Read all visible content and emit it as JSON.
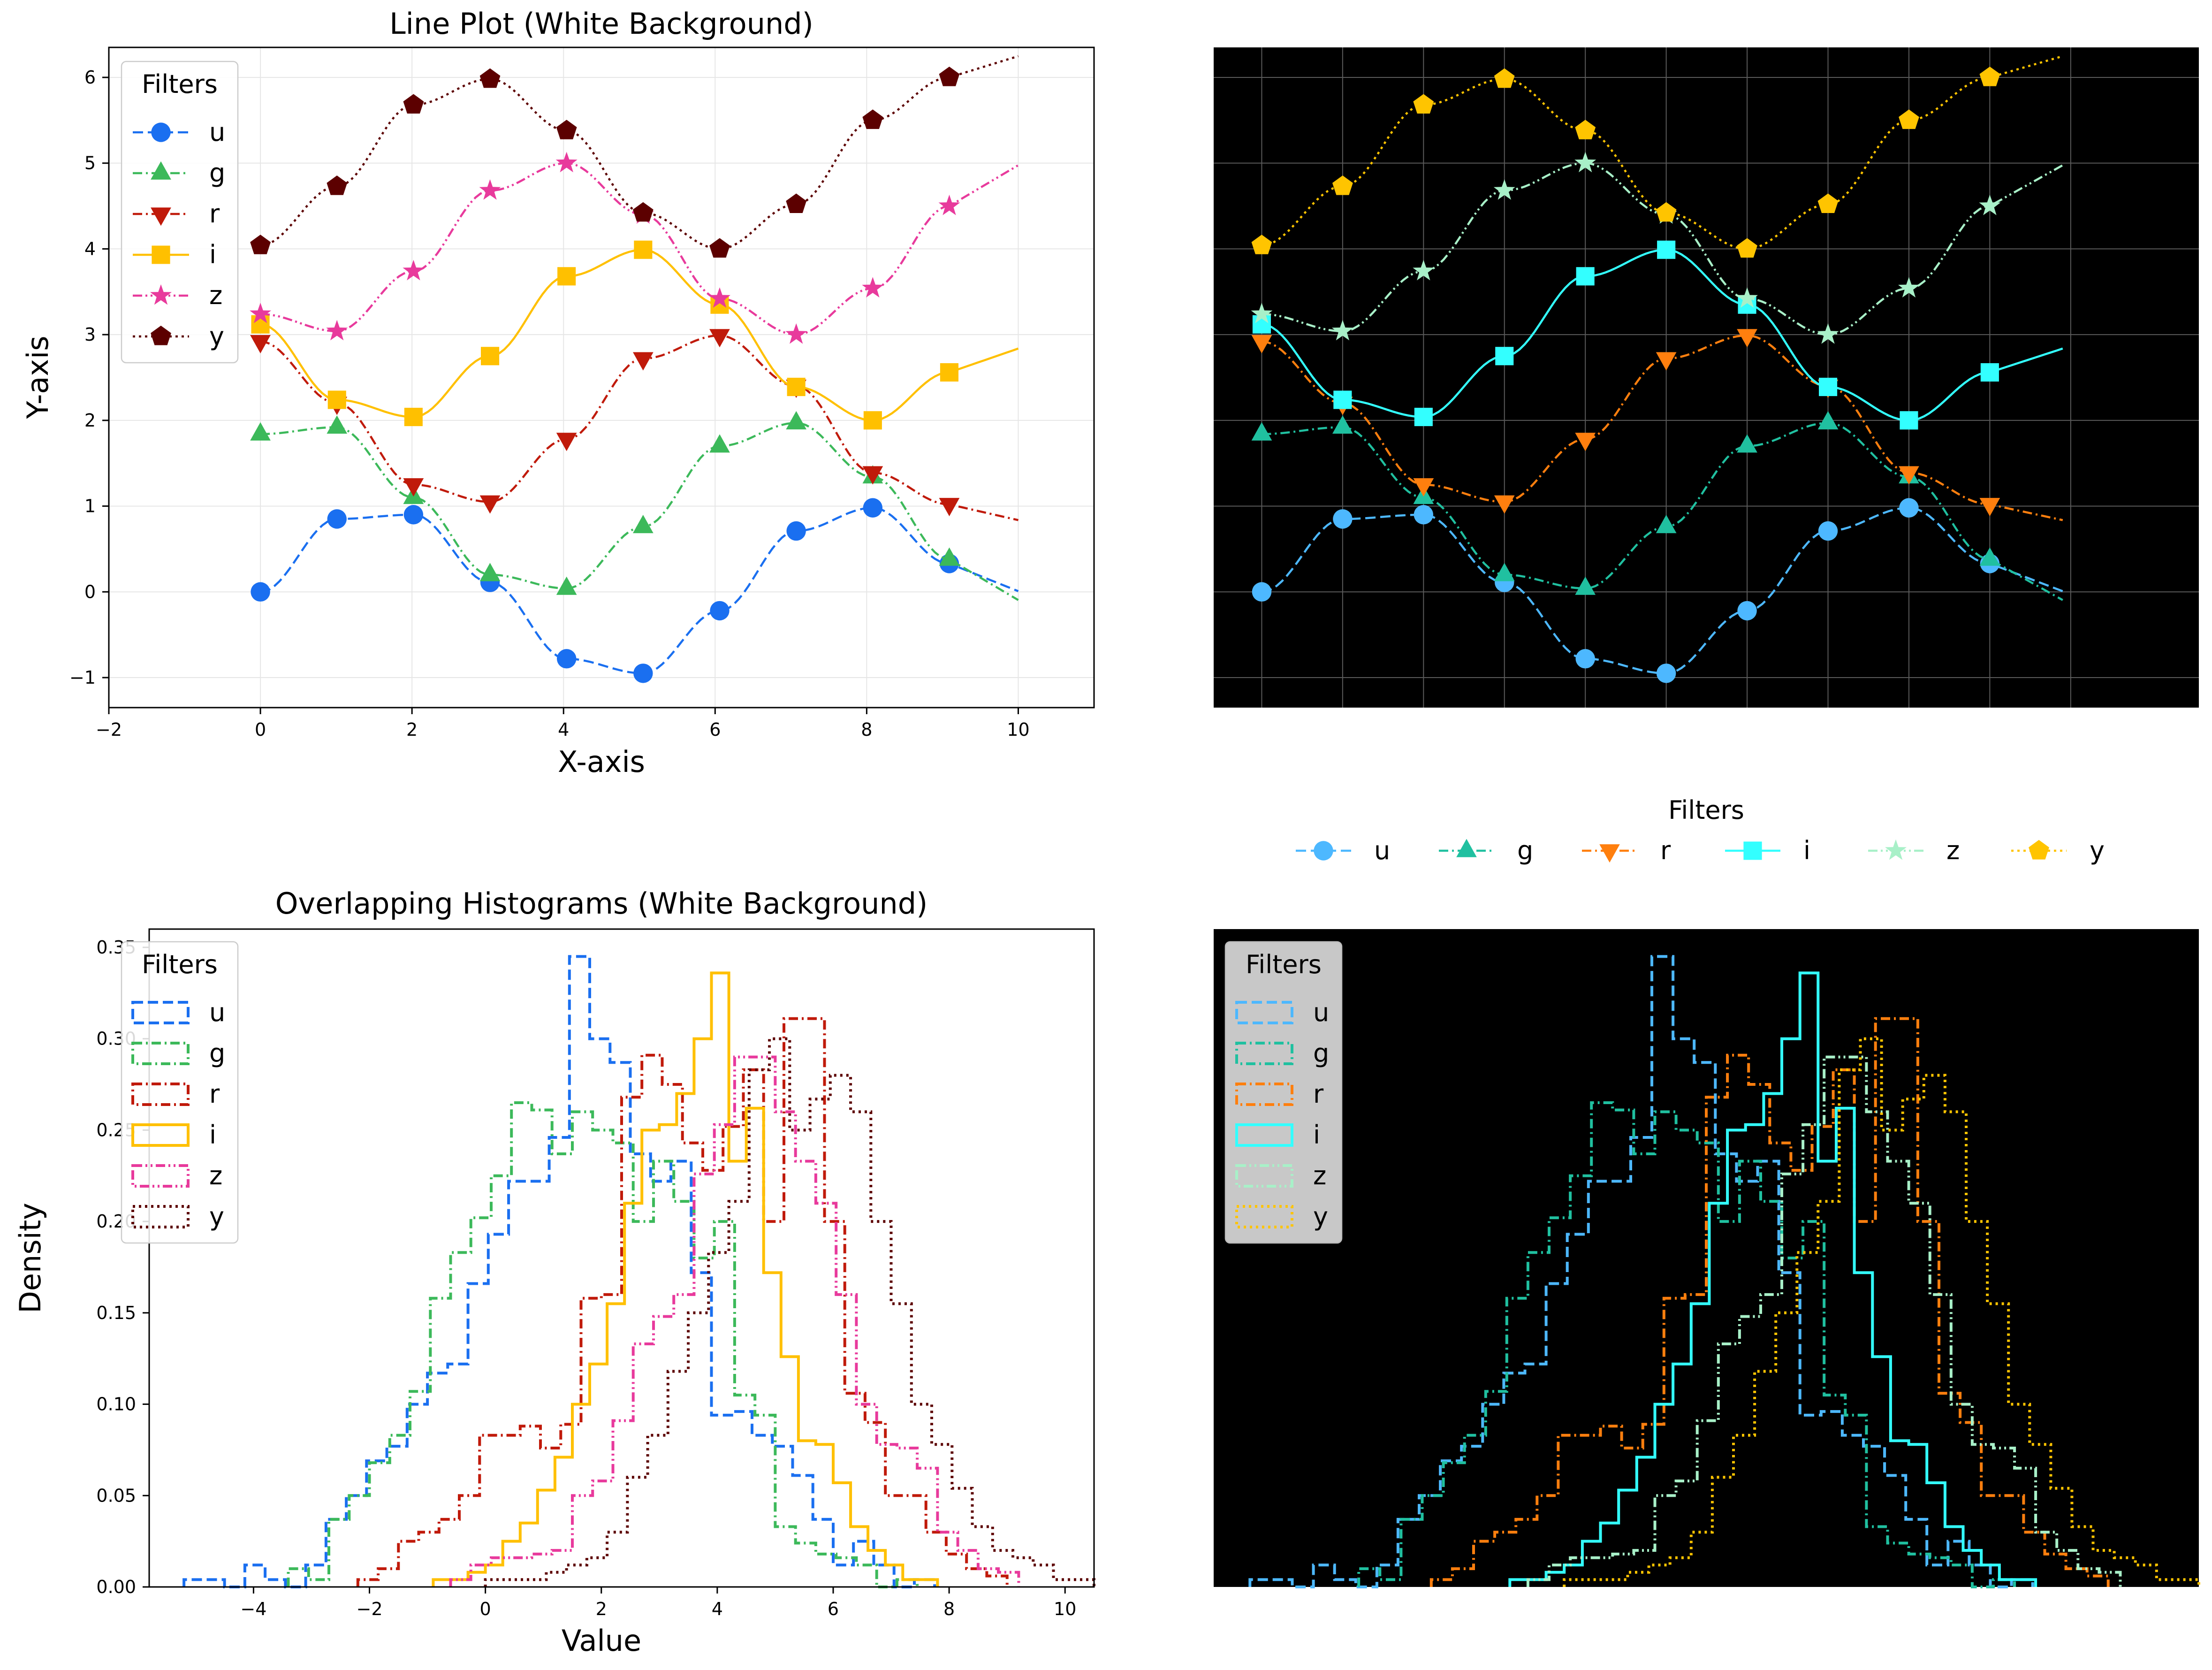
{
  "figure": {
    "shared_legend": {
      "title": "Filters",
      "entries": [
        {
          "label": "u",
          "color": "#4db8ff",
          "dash": "dashed",
          "marker": "circle"
        },
        {
          "label": "g",
          "color": "#20c0a0",
          "dash": "dashdot",
          "marker": "triangle-up"
        },
        {
          "label": "r",
          "color": "#ff7f0e",
          "dash": "dashdot",
          "marker": "triangle-down"
        },
        {
          "label": "i",
          "color": "#33ffff",
          "dash": "solid",
          "marker": "square"
        },
        {
          "label": "z",
          "color": "#a8f0c8",
          "dash": "dashdotdot",
          "marker": "star"
        },
        {
          "label": "y",
          "color": "#ffc400",
          "dash": "dotted",
          "marker": "pentagon"
        }
      ]
    }
  },
  "chart_data": [
    {
      "panel": "top-left",
      "type": "line",
      "title": "Line Plot (White Background)",
      "xlabel": "X-axis",
      "ylabel": "Y-axis",
      "xlim": [
        -2,
        11
      ],
      "ylim": [
        -1.35,
        6.35
      ],
      "xticks": [
        -2,
        0,
        2,
        4,
        6,
        8,
        10
      ],
      "yticks": [
        -1,
        0,
        1,
        2,
        3,
        4,
        5,
        6
      ],
      "background": "#ffffff",
      "grid": true,
      "legend": {
        "title": "Filters",
        "position": "upper-left"
      },
      "x_markers": [
        0,
        1.01,
        2.02,
        3.03,
        4.04,
        5.05,
        6.06,
        7.07,
        8.08,
        9.09
      ],
      "series": [
        {
          "name": "u",
          "color": "#1a6ff0",
          "dash": "dashed",
          "marker": "circle",
          "values": [
            0.0,
            0.85,
            0.9,
            0.11,
            -0.78,
            -0.95,
            -0.22,
            0.71,
            0.98,
            0.33
          ]
        },
        {
          "name": "g",
          "color": "#3cb95a",
          "dash": "dashdot",
          "marker": "triangle-up",
          "values": [
            1.84,
            1.92,
            1.1,
            0.2,
            0.04,
            0.76,
            1.7,
            1.97,
            1.34,
            0.38
          ]
        },
        {
          "name": "r",
          "color": "#c01a0a",
          "dash": "dashdot",
          "marker": "triangle-down",
          "values": [
            2.92,
            2.2,
            1.25,
            1.05,
            1.78,
            2.72,
            2.99,
            2.4,
            1.39,
            1.02
          ]
        },
        {
          "name": "i",
          "color": "#ffc000",
          "dash": "solid",
          "marker": "square",
          "values": [
            3.12,
            2.24,
            2.04,
            2.75,
            3.68,
            3.99,
            3.35,
            2.39,
            2.0,
            2.56
          ]
        },
        {
          "name": "z",
          "color": "#e83a9c",
          "dash": "dashdotdot",
          "marker": "star",
          "values": [
            3.24,
            3.04,
            3.74,
            4.68,
            5.0,
            4.4,
            3.42,
            3.0,
            3.54,
            4.5
          ]
        },
        {
          "name": "y",
          "color": "#5c0000",
          "dash": "dotted",
          "marker": "pentagon",
          "values": [
            4.04,
            4.73,
            5.68,
            5.98,
            5.38,
            4.42,
            4.0,
            4.52,
            5.5,
            6.0
          ]
        }
      ]
    },
    {
      "panel": "top-right",
      "type": "line",
      "title": "",
      "xlim": [
        -0.6,
        11.7
      ],
      "ylim": [
        -1.35,
        6.35
      ],
      "background": "#000000",
      "grid": true,
      "legend": {
        "title": "Filters",
        "position": "below, horizontal"
      },
      "x_markers": [
        0,
        1.01,
        2.02,
        3.03,
        4.04,
        5.05,
        6.06,
        7.07,
        8.08,
        9.09
      ],
      "series": [
        {
          "name": "u",
          "color": "#4db8ff",
          "dash": "dashed",
          "marker": "circle",
          "values": [
            0.0,
            0.85,
            0.9,
            0.11,
            -0.78,
            -0.95,
            -0.22,
            0.71,
            0.98,
            0.33
          ]
        },
        {
          "name": "g",
          "color": "#20c0a0",
          "dash": "dashdot",
          "marker": "triangle-up",
          "values": [
            1.84,
            1.92,
            1.1,
            0.2,
            0.04,
            0.76,
            1.7,
            1.97,
            1.34,
            0.38
          ]
        },
        {
          "name": "r",
          "color": "#ff7f0e",
          "dash": "dashdot",
          "marker": "triangle-down",
          "values": [
            2.92,
            2.2,
            1.25,
            1.05,
            1.78,
            2.72,
            2.99,
            2.4,
            1.39,
            1.02
          ]
        },
        {
          "name": "i",
          "color": "#33ffff",
          "dash": "solid",
          "marker": "square",
          "values": [
            3.12,
            2.24,
            2.04,
            2.75,
            3.68,
            3.99,
            3.35,
            2.39,
            2.0,
            2.56
          ]
        },
        {
          "name": "z",
          "color": "#a8f0c8",
          "dash": "dashdotdot",
          "marker": "star",
          "values": [
            3.24,
            3.04,
            3.74,
            4.68,
            5.0,
            4.4,
            3.42,
            3.0,
            3.54,
            4.5
          ]
        },
        {
          "name": "y",
          "color": "#ffc400",
          "dash": "dotted",
          "marker": "pentagon",
          "values": [
            4.04,
            4.73,
            5.68,
            5.98,
            5.38,
            4.42,
            4.0,
            4.52,
            5.5,
            6.0
          ]
        }
      ]
    },
    {
      "panel": "bottom-left",
      "type": "histogram",
      "title": "Overlapping Histograms (White Background)",
      "xlabel": "Value",
      "ylabel": "Density",
      "xlim": [
        -5.8,
        10.5
      ],
      "ylim": [
        0,
        0.36
      ],
      "xticks": [
        -4,
        -2,
        0,
        2,
        4,
        6,
        8,
        10
      ],
      "yticks": [
        0.0,
        0.05,
        0.1,
        0.15,
        0.2,
        0.25,
        0.3,
        0.35
      ],
      "background": "#ffffff",
      "grid": false,
      "legend": {
        "title": "Filters",
        "position": "upper-left"
      },
      "series": [
        {
          "name": "u",
          "color": "#1a6ff0",
          "dash": "dashed",
          "x0": -5.2,
          "bin_width": 0.35,
          "densities": [
            0.004,
            0.004,
            0.0,
            0.012,
            0.004,
            0.0,
            0.012,
            0.037,
            0.05,
            0.069,
            0.077,
            0.1,
            0.117,
            0.122,
            0.166,
            0.193,
            0.222,
            0.222,
            0.246,
            0.345,
            0.3,
            0.287,
            0.237,
            0.222,
            0.233,
            0.172,
            0.094,
            0.096,
            0.083,
            0.077,
            0.061,
            0.037,
            0.012,
            0.025,
            0.012,
            0.0,
            0.004
          ]
        },
        {
          "name": "g",
          "color": "#3cb95a",
          "dash": "dashdot",
          "x0": -3.4,
          "bin_width": 0.35,
          "densities": [
            0.01,
            0.004,
            0.037,
            0.05,
            0.068,
            0.083,
            0.107,
            0.158,
            0.183,
            0.202,
            0.225,
            0.265,
            0.261,
            0.237,
            0.26,
            0.25,
            0.243,
            0.2,
            0.233,
            0.211,
            0.18,
            0.2,
            0.105,
            0.094,
            0.033,
            0.024,
            0.018,
            0.016,
            0.012,
            0.0,
            0.004
          ]
        },
        {
          "name": "r",
          "color": "#c01a0a",
          "dash": "dashdot",
          "x0": -2.2,
          "bin_width": 0.35,
          "densities": [
            0.004,
            0.01,
            0.025,
            0.03,
            0.037,
            0.05,
            0.083,
            0.083,
            0.088,
            0.076,
            0.089,
            0.158,
            0.16,
            0.268,
            0.291,
            0.275,
            0.243,
            0.228,
            0.252,
            0.283,
            0.2,
            0.311,
            0.311,
            0.2,
            0.106,
            0.09,
            0.05,
            0.05,
            0.03,
            0.018,
            0.01,
            0.006
          ]
        },
        {
          "name": "i",
          "color": "#ffc000",
          "dash": "solid",
          "x0": -0.9,
          "bin_width": 0.3,
          "densities": [
            0.004,
            0.004,
            0.008,
            0.012,
            0.025,
            0.035,
            0.053,
            0.071,
            0.1,
            0.122,
            0.155,
            0.21,
            0.25,
            0.253,
            0.27,
            0.3,
            0.336,
            0.233,
            0.262,
            0.172,
            0.126,
            0.08,
            0.078,
            0.057,
            0.033,
            0.02,
            0.012,
            0.004,
            0.004
          ]
        },
        {
          "name": "z",
          "color": "#e83a9c",
          "dash": "dashdotdot",
          "x0": -0.6,
          "bin_width": 0.35,
          "densities": [
            0.004,
            0.012,
            0.016,
            0.016,
            0.018,
            0.02,
            0.05,
            0.058,
            0.091,
            0.133,
            0.148,
            0.16,
            0.226,
            0.253,
            0.29,
            0.29,
            0.26,
            0.233,
            0.21,
            0.16,
            0.1,
            0.078,
            0.076,
            0.065,
            0.03,
            0.02,
            0.01,
            0.008
          ]
        },
        {
          "name": "y",
          "color": "#5c0000",
          "dash": "dotted",
          "x0": 0.0,
          "bin_width": 0.35,
          "densities": [
            0.004,
            0.004,
            0.004,
            0.008,
            0.012,
            0.016,
            0.03,
            0.06,
            0.083,
            0.118,
            0.15,
            0.183,
            0.211,
            0.283,
            0.3,
            0.25,
            0.267,
            0.28,
            0.26,
            0.2,
            0.155,
            0.1,
            0.078,
            0.054,
            0.033,
            0.02,
            0.016,
            0.012,
            0.004,
            0.004
          ]
        }
      ]
    },
    {
      "panel": "bottom-right",
      "type": "histogram",
      "title": "",
      "xlim": [
        -5.8,
        10.5
      ],
      "ylim": [
        0,
        0.36
      ],
      "background": "#000000",
      "grid": false,
      "legend": {
        "title": "Filters",
        "position": "upper-left",
        "background": "#c8c8c8"
      },
      "series": [
        {
          "name": "u",
          "color": "#4db8ff",
          "dash": "dashed"
        },
        {
          "name": "g",
          "color": "#20c0a0",
          "dash": "dashdot"
        },
        {
          "name": "r",
          "color": "#ff7f0e",
          "dash": "dashdot"
        },
        {
          "name": "i",
          "color": "#33ffff",
          "dash": "solid"
        },
        {
          "name": "z",
          "color": "#a8f0c8",
          "dash": "dashdotdot"
        },
        {
          "name": "y",
          "color": "#ffc400",
          "dash": "dotted"
        }
      ]
    }
  ]
}
